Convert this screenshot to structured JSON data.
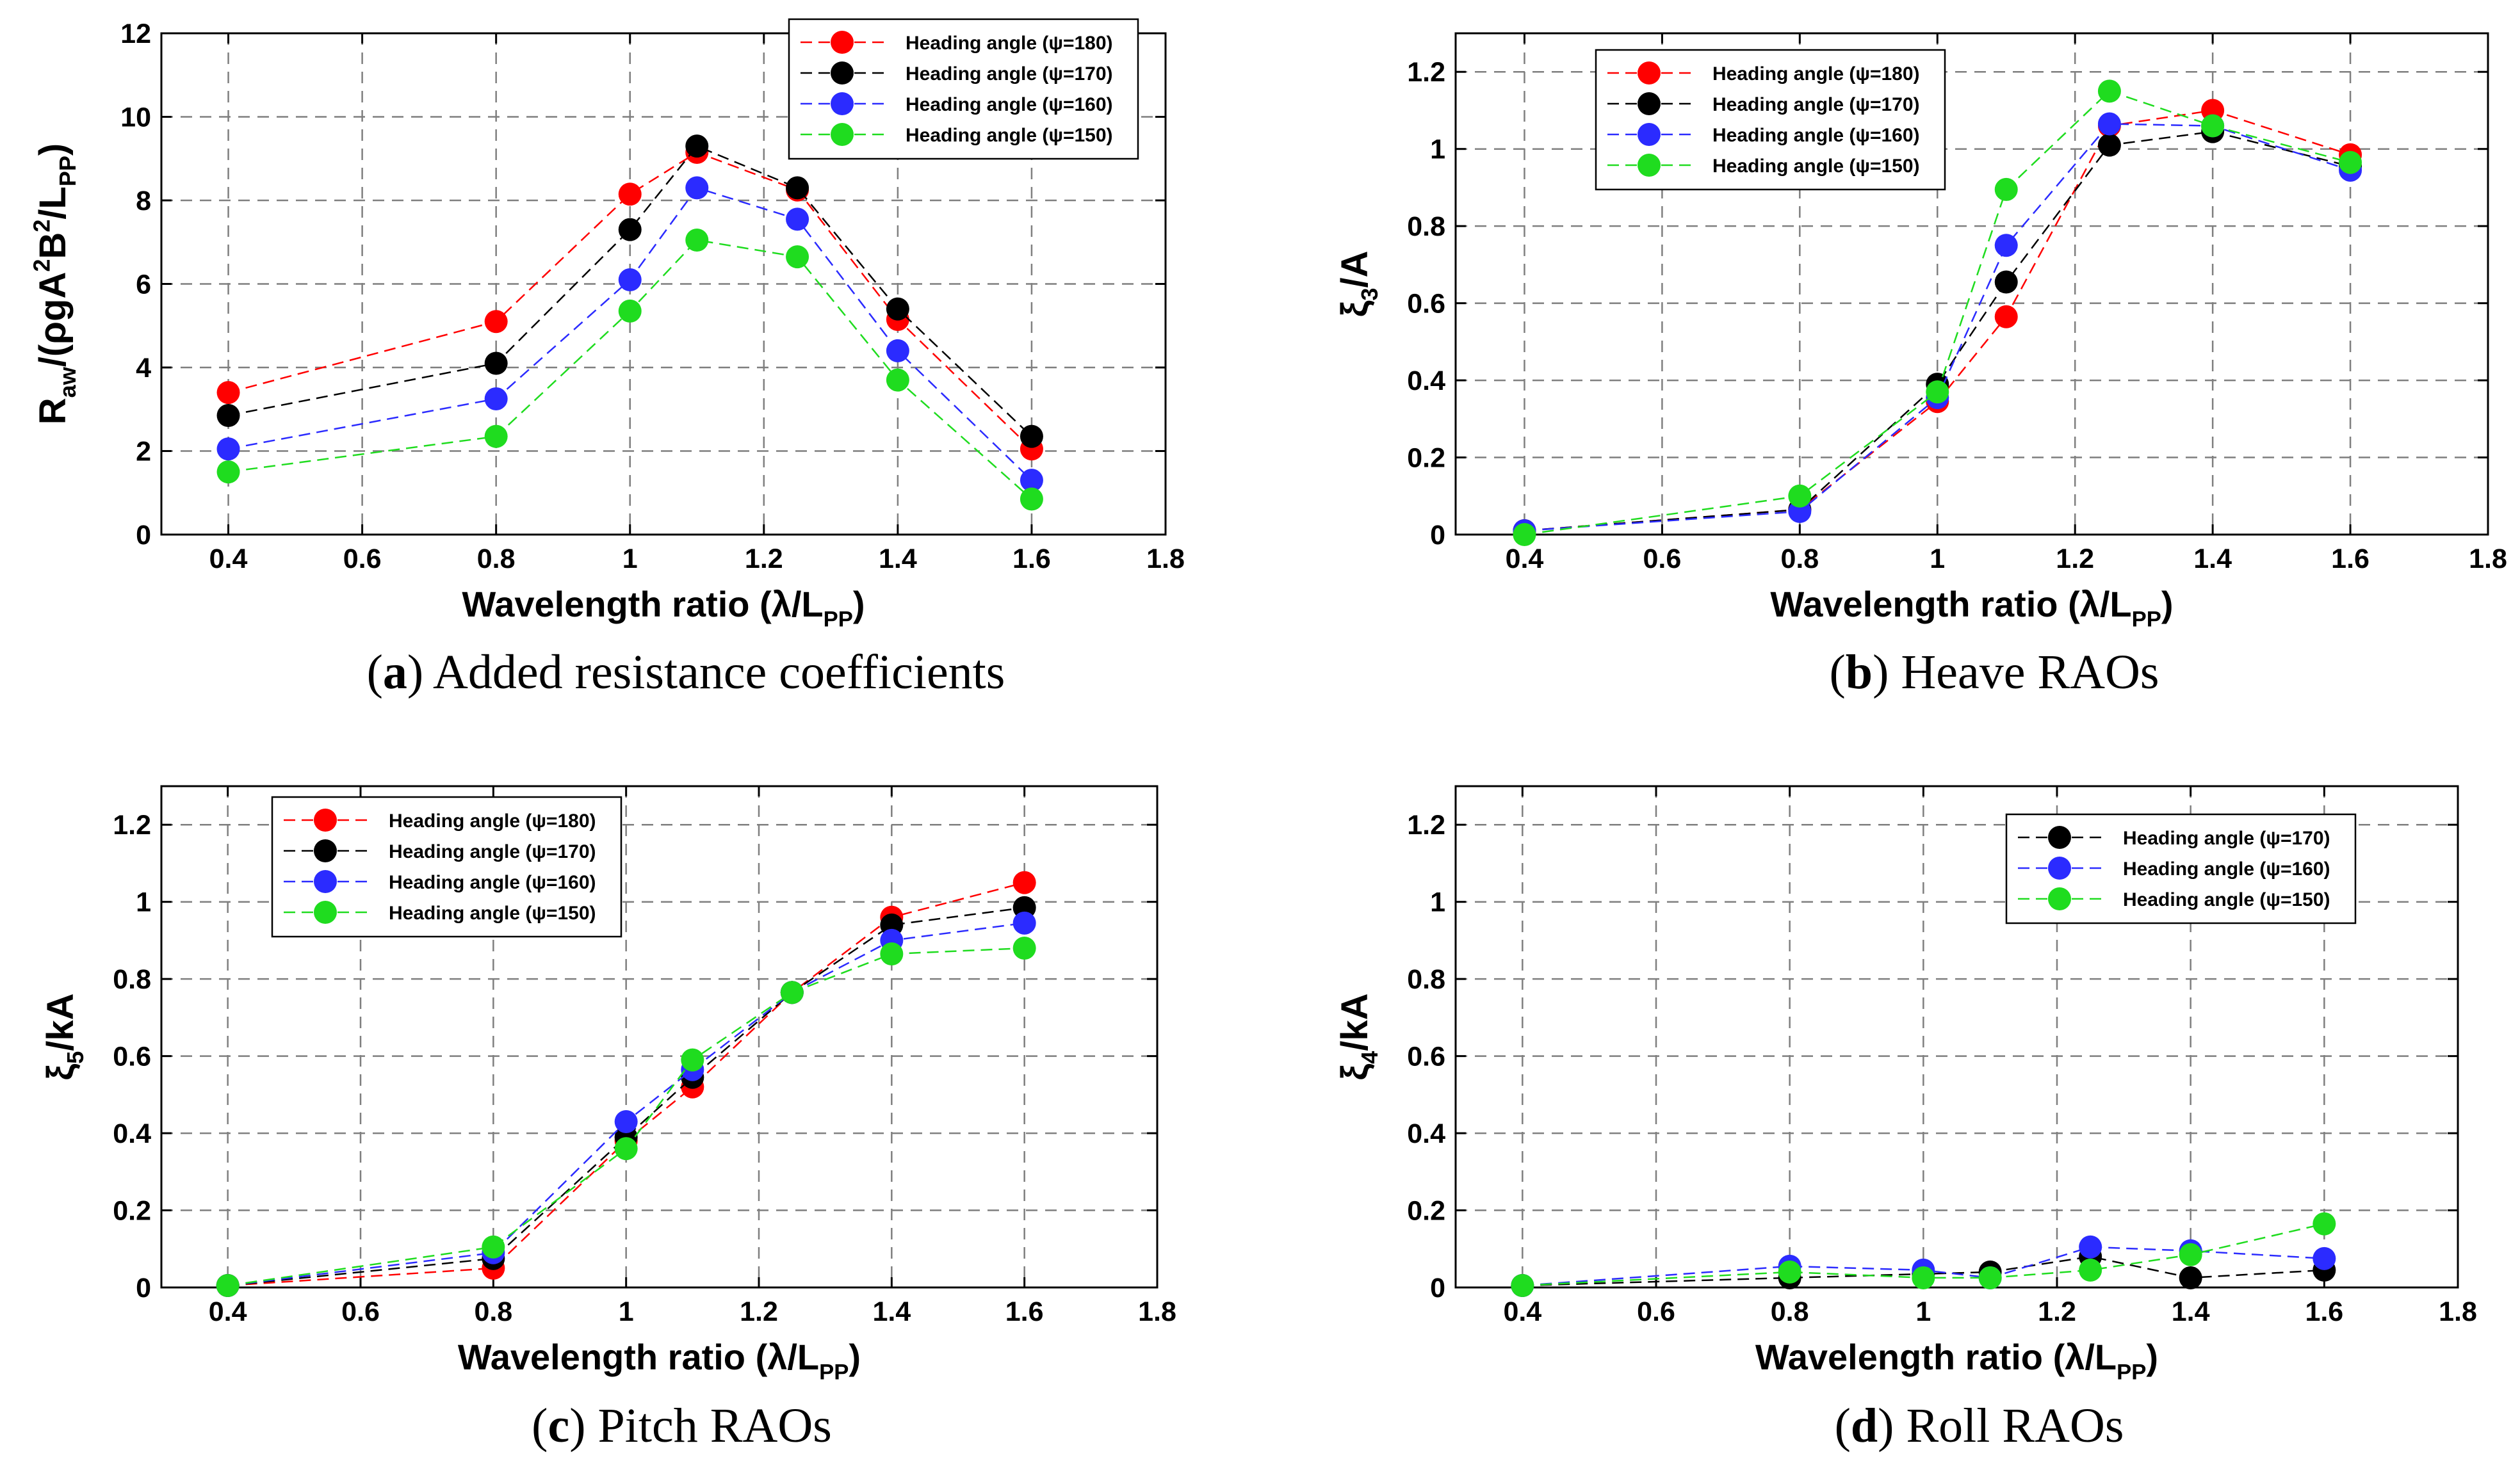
{
  "colors": {
    "psi180": "#ff0000",
    "psi170": "#000000",
    "psi160": "#2b2bff",
    "psi150": "#1fdc1f",
    "grid": "#7f7f7f",
    "axis": "#000000"
  },
  "chart_data": [
    {
      "id": "a",
      "type": "line",
      "caption_letter": "(a)",
      "caption_text": " Added resistance coefficients",
      "ylabel": "R_aw/(ρgA²B²/L_PP)",
      "xlabel": "Wavelength ratio (λ/L_PP)",
      "xlim": [
        0.3,
        1.8
      ],
      "ylim": [
        0,
        12
      ],
      "xticks": [
        "0.4",
        "0.6",
        "0.8",
        "1",
        "1.2",
        "1.4",
        "1.6",
        "1.8"
      ],
      "yticks": [
        "0",
        "2",
        "4",
        "6",
        "8",
        "10",
        "12"
      ],
      "grid": true,
      "legend_position": "top-right",
      "series": [
        {
          "name": "Heading angle (ψ=180)",
          "color_key": "psi180",
          "x": [
            0.4,
            0.8,
            1.0,
            1.1,
            1.25,
            1.4,
            1.6
          ],
          "values": [
            3.4,
            5.1,
            8.15,
            9.15,
            8.25,
            5.15,
            2.05
          ]
        },
        {
          "name": "Heading angle (ψ=170)",
          "color_key": "psi170",
          "x": [
            0.4,
            0.8,
            1.0,
            1.1,
            1.25,
            1.4,
            1.6
          ],
          "values": [
            2.85,
            4.1,
            7.3,
            9.3,
            8.3,
            5.4,
            2.35
          ]
        },
        {
          "name": "Heading angle (ψ=160)",
          "color_key": "psi160",
          "x": [
            0.4,
            0.8,
            1.0,
            1.1,
            1.25,
            1.4,
            1.6
          ],
          "values": [
            2.05,
            3.25,
            6.1,
            8.3,
            7.55,
            4.4,
            1.3
          ]
        },
        {
          "name": "Heading angle (ψ=150)",
          "color_key": "psi150",
          "x": [
            0.4,
            0.8,
            1.0,
            1.1,
            1.25,
            1.4,
            1.6
          ],
          "values": [
            1.5,
            2.35,
            5.35,
            7.05,
            6.65,
            3.7,
            0.85
          ]
        }
      ]
    },
    {
      "id": "b",
      "type": "line",
      "caption_letter": "(b)",
      "caption_text": " Heave RAOs",
      "ylabel": "ξ3/A",
      "xlabel": "Wavelength ratio (λ/L_PP)",
      "xlim": [
        0.3,
        1.8
      ],
      "ylim": [
        0,
        1.3
      ],
      "xticks": [
        "0.4",
        "0.6",
        "0.8",
        "1",
        "1.2",
        "1.4",
        "1.6",
        "1.8"
      ],
      "yticks": [
        "0",
        "0.2",
        "0.4",
        "0.6",
        "0.8",
        "1",
        "1.2"
      ],
      "grid": true,
      "legend_position": "top-left",
      "series": [
        {
          "name": "Heading angle (ψ=180)",
          "color_key": "psi180",
          "x": [
            0.4,
            0.8,
            1.0,
            1.1,
            1.25,
            1.4,
            1.6
          ],
          "values": [
            0.01,
            0.065,
            0.345,
            0.565,
            1.06,
            1.1,
            0.985
          ]
        },
        {
          "name": "Heading angle (ψ=170)",
          "color_key": "psi170",
          "x": [
            0.4,
            0.8,
            1.0,
            1.1,
            1.25,
            1.4,
            1.6
          ],
          "values": [
            0.01,
            0.065,
            0.39,
            0.655,
            1.01,
            1.045,
            0.955
          ]
        },
        {
          "name": "Heading angle (ψ=160)",
          "color_key": "psi160",
          "x": [
            0.4,
            0.8,
            1.0,
            1.1,
            1.25,
            1.4,
            1.6
          ],
          "values": [
            0.01,
            0.06,
            0.355,
            0.75,
            1.065,
            1.06,
            0.945
          ]
        },
        {
          "name": "Heading angle (ψ=150)",
          "color_key": "psi150",
          "x": [
            0.4,
            0.8,
            1.0,
            1.1,
            1.25,
            1.4,
            1.6
          ],
          "values": [
            0.0,
            0.1,
            0.37,
            0.895,
            1.15,
            1.06,
            0.965
          ]
        }
      ]
    },
    {
      "id": "c",
      "type": "line",
      "caption_letter": "(c)",
      "caption_text": " Pitch RAOs",
      "ylabel": "ξ5/kA",
      "xlabel": "Wavelength ratio (λ/L_PP)",
      "xlim": [
        0.3,
        1.8
      ],
      "ylim": [
        0,
        1.3
      ],
      "xticks": [
        "0.4",
        "0.6",
        "0.8",
        "1",
        "1.2",
        "1.4",
        "1.6",
        "1.8"
      ],
      "yticks": [
        "0",
        "0.2",
        "0.4",
        "0.6",
        "0.8",
        "1",
        "1.2"
      ],
      "grid": true,
      "legend_position": "top-left",
      "series": [
        {
          "name": "Heading angle (ψ=180)",
          "color_key": "psi180",
          "x": [
            0.4,
            0.8,
            1.0,
            1.1,
            1.25,
            1.4,
            1.6
          ],
          "values": [
            0.005,
            0.05,
            0.38,
            0.52,
            0.765,
            0.96,
            1.05
          ]
        },
        {
          "name": "Heading angle (ψ=170)",
          "color_key": "psi170",
          "x": [
            0.4,
            0.8,
            1.0,
            1.1,
            1.25,
            1.4,
            1.6
          ],
          "values": [
            0.005,
            0.075,
            0.39,
            0.545,
            0.765,
            0.94,
            0.985
          ]
        },
        {
          "name": "Heading angle (ψ=160)",
          "color_key": "psi160",
          "x": [
            0.4,
            0.8,
            1.0,
            1.1,
            1.25,
            1.4,
            1.6
          ],
          "values": [
            0.005,
            0.09,
            0.43,
            0.565,
            0.765,
            0.9,
            0.945
          ]
        },
        {
          "name": "Heading angle (ψ=150)",
          "color_key": "psi150",
          "x": [
            0.4,
            0.8,
            1.0,
            1.1,
            1.25,
            1.4,
            1.6
          ],
          "values": [
            0.005,
            0.105,
            0.36,
            0.59,
            0.765,
            0.865,
            0.88
          ]
        }
      ]
    },
    {
      "id": "d",
      "type": "line",
      "caption_letter": "(d)",
      "caption_text": " Roll RAOs",
      "ylabel": "ξ4/kA",
      "xlabel": "Wavelength ratio (λ/L_PP)",
      "xlim": [
        0.3,
        1.8
      ],
      "ylim": [
        0,
        1.3
      ],
      "xticks": [
        "0.4",
        "0.6",
        "0.8",
        "1",
        "1.2",
        "1.4",
        "1.6",
        "1.8"
      ],
      "yticks": [
        "0",
        "0.2",
        "0.4",
        "0.6",
        "0.8",
        "1",
        "1.2"
      ],
      "grid": true,
      "legend_position": "top-right",
      "series": [
        {
          "name": "Heading angle (ψ=170)",
          "color_key": "psi170",
          "x": [
            0.4,
            0.8,
            1.0,
            1.1,
            1.25,
            1.4,
            1.6
          ],
          "values": [
            0.005,
            0.025,
            0.035,
            0.04,
            0.08,
            0.025,
            0.045
          ]
        },
        {
          "name": "Heading angle (ψ=160)",
          "color_key": "psi160",
          "x": [
            0.4,
            0.8,
            1.0,
            1.1,
            1.25,
            1.4,
            1.6
          ],
          "values": [
            0.005,
            0.055,
            0.045,
            0.025,
            0.105,
            0.095,
            0.075
          ]
        },
        {
          "name": "Heading angle (ψ=150)",
          "color_key": "psi150",
          "x": [
            0.4,
            0.8,
            1.0,
            1.1,
            1.25,
            1.4,
            1.6
          ],
          "values": [
            0.005,
            0.04,
            0.025,
            0.025,
            0.045,
            0.085,
            0.165
          ]
        }
      ]
    }
  ]
}
